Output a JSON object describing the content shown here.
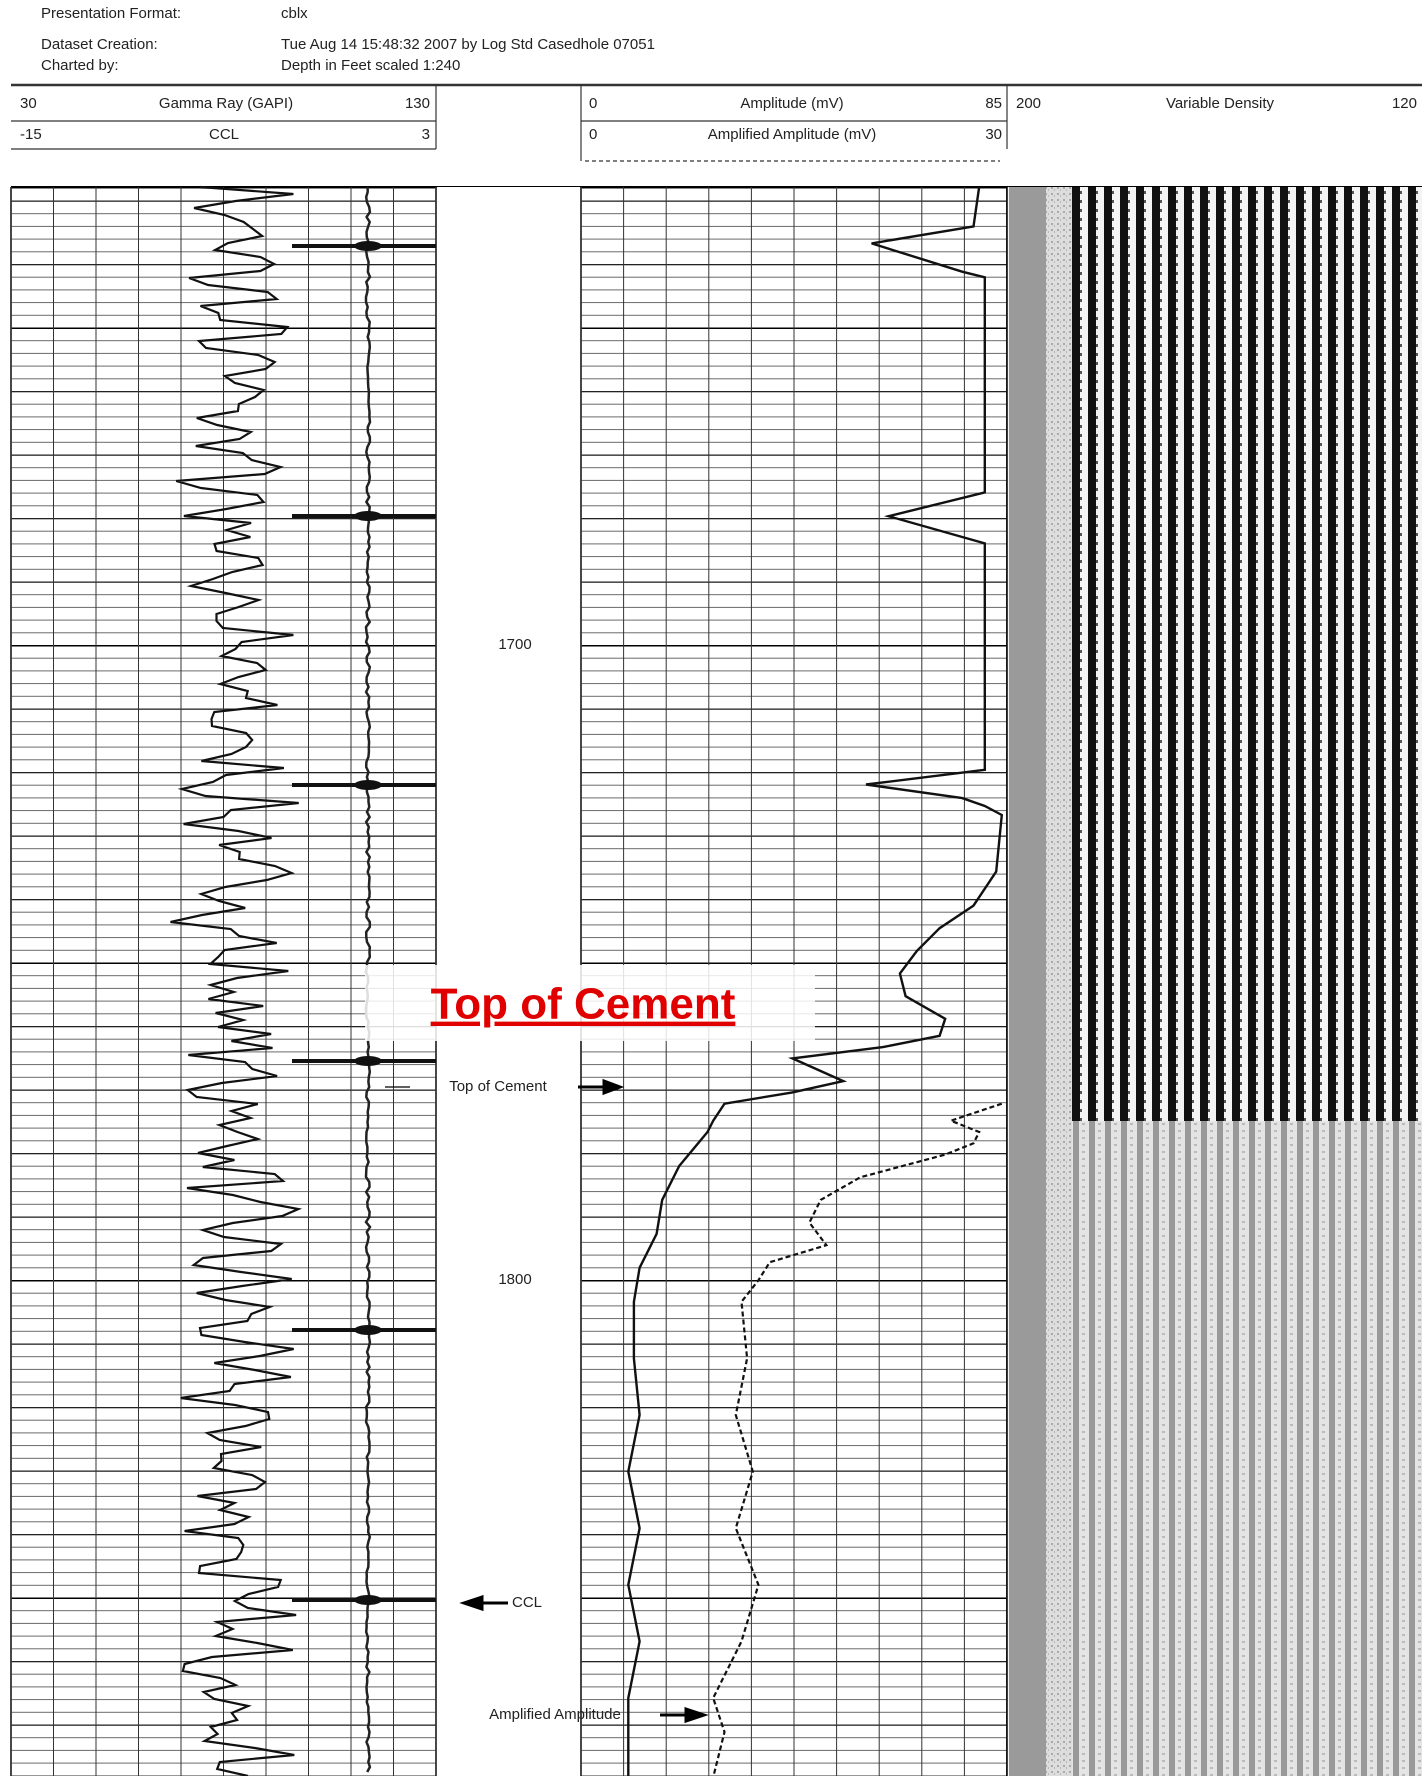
{
  "header": {
    "rows": [
      {
        "label": "Presentation Format:",
        "value": "cblx"
      },
      {
        "label": "Dataset Creation:",
        "value": "Tue Aug 14 15:48:32 2007 by Log Std Casedhole 07051"
      },
      {
        "label": "Charted by:",
        "value": "Depth in Feet scaled 1:240"
      }
    ]
  },
  "tracks": [
    {
      "curves": [
        {
          "left": "30",
          "name": "Gamma Ray (GAPI)",
          "right": "130"
        },
        {
          "left": "-15",
          "name": "CCL",
          "right": "3"
        }
      ]
    },
    {
      "curves": [
        {
          "left": "0",
          "name": "Amplitude (mV)",
          "right": "85"
        },
        {
          "left": "0",
          "name": "Amplified Amplitude (mV)",
          "right": "30"
        }
      ]
    },
    {
      "curves": [
        {
          "left": "200",
          "name": "Variable Density",
          "right": "120"
        }
      ]
    }
  ],
  "depth_labels": [
    "1700",
    "1800"
  ],
  "annotations": {
    "callout": "Top of Cement",
    "top_of_cement": "Top of Cement",
    "ccl": "CCL",
    "amplified_amplitude": "Amplified Amplitude"
  }
}
